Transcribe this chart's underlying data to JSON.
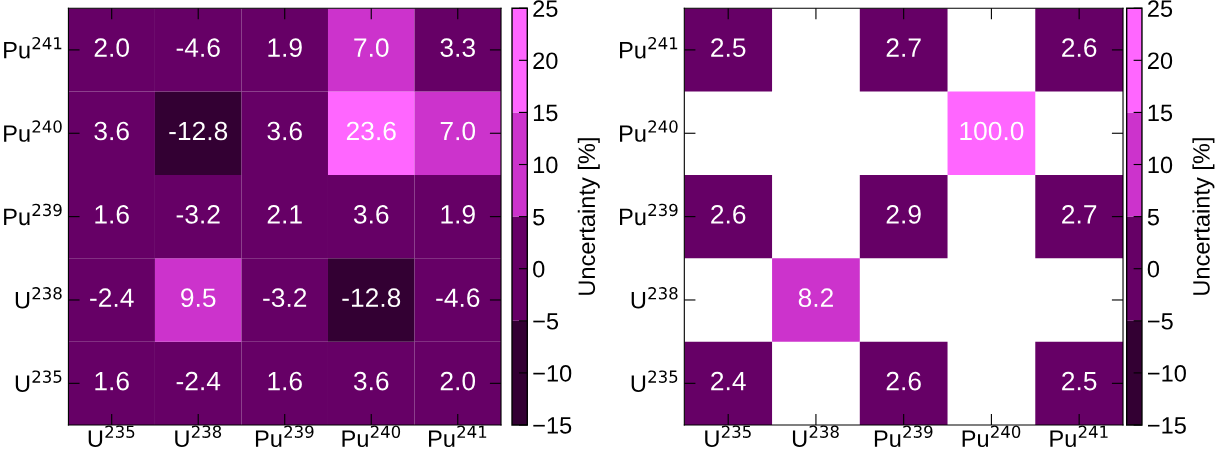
{
  "chart_data": [
    {
      "type": "heatmap",
      "categories": [
        "U$^{235}$",
        "U$^{238}$",
        "Pu$^{239}$",
        "Pu$^{240}$",
        "Pu$^{241}$"
      ],
      "y_categories": [
        "Pu$^{241}$",
        "Pu$^{240}$",
        "Pu$^{239}$",
        "U$^{238}$",
        "U$^{235}$"
      ],
      "cells": [
        [
          2.0,
          -4.6,
          1.9,
          7.0,
          3.3
        ],
        [
          3.6,
          -12.8,
          3.6,
          23.6,
          7.0
        ],
        [
          1.6,
          -3.2,
          2.1,
          3.6,
          1.9
        ],
        [
          -2.4,
          9.5,
          -3.2,
          -12.8,
          -4.6
        ],
        [
          1.6,
          -2.4,
          1.6,
          3.6,
          2.0
        ]
      ],
      "cell_labels": [
        [
          "2.0",
          "-4.6",
          "1.9",
          "7.0",
          "3.3"
        ],
        [
          "3.6",
          "-12.8",
          "3.6",
          "23.6",
          "7.0"
        ],
        [
          "1.6",
          "-3.2",
          "2.1",
          "3.6",
          "1.9"
        ],
        [
          "-2.4",
          "9.5",
          "-3.2",
          "-12.8",
          "-4.6"
        ],
        [
          "1.6",
          "-2.4",
          "1.6",
          "3.6",
          "2.0"
        ]
      ],
      "clim": [
        -15,
        25
      ],
      "cticks": [
        -15,
        -10,
        -5,
        0,
        5,
        10,
        15,
        20,
        25
      ],
      "clabel": "Uncertainty [%]"
    },
    {
      "type": "heatmap",
      "categories": [
        "U$^{235}$",
        "U$^{238}$",
        "Pu$^{239}$",
        "Pu$^{240}$",
        "Pu$^{241}$"
      ],
      "y_categories": [
        "Pu$^{241}$",
        "Pu$^{240}$",
        "Pu$^{239}$",
        "U$^{238}$",
        "U$^{235}$"
      ],
      "cells": [
        [
          2.5,
          null,
          2.7,
          null,
          2.6
        ],
        [
          null,
          null,
          null,
          100.0,
          null
        ],
        [
          2.6,
          null,
          2.9,
          null,
          2.7
        ],
        [
          null,
          8.2,
          null,
          null,
          null
        ],
        [
          2.4,
          null,
          2.6,
          null,
          2.5
        ]
      ],
      "cell_labels": [
        [
          "2.5",
          null,
          "2.7",
          null,
          "2.6"
        ],
        [
          null,
          null,
          null,
          "100.0",
          null
        ],
        [
          "2.6",
          null,
          "2.9",
          null,
          "2.7"
        ],
        [
          null,
          "8.2",
          null,
          null,
          null
        ],
        [
          "2.4",
          null,
          "2.6",
          null,
          "2.5"
        ]
      ],
      "clim": [
        -15,
        25
      ],
      "cticks": [
        -15,
        -10,
        -5,
        0,
        5,
        10,
        15,
        20,
        25
      ],
      "clabel": "Uncertainty [%]"
    }
  ]
}
